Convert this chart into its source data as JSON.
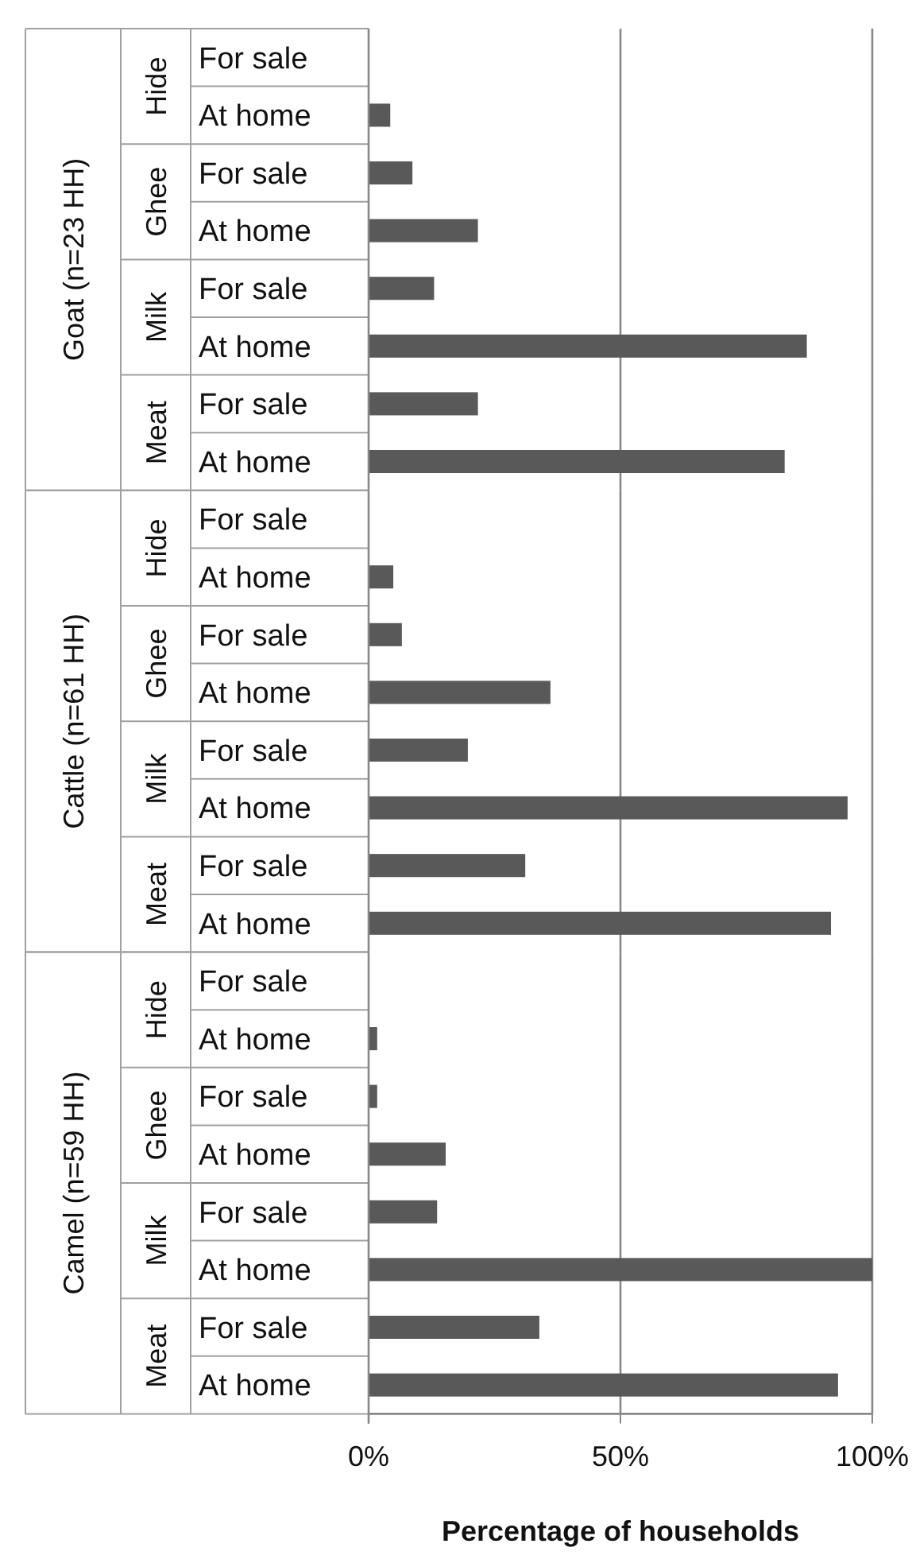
{
  "chart_data": [
    {
      "type": "bar",
      "orientation": "horizontal",
      "title": "Goat (n=23 HH)",
      "categories": [
        "For sale",
        "At home",
        "For sale",
        "At home",
        "For sale",
        "At home",
        "For sale",
        "At home"
      ],
      "annotations": [
        "Hide",
        "Ghee",
        "Milk",
        "Meat"
      ],
      "values": [
        0,
        4.3,
        8.7,
        21.7,
        13,
        87,
        21.7,
        82.6
      ],
      "color": "#595959",
      "xlim": [
        0,
        100
      ],
      "xticks": [
        0,
        50,
        100
      ],
      "grid": "x",
      "tick_labels": "y"
    },
    {
      "type": "bar",
      "orientation": "horizontal",
      "title": "Cattle (n=61  HH)",
      "categories": [
        "For sale",
        "At home",
        "For sale",
        "At home",
        "For sale",
        "At home",
        "For sale",
        "At home"
      ],
      "annotations": [
        "Hide",
        "Ghee",
        "Milk",
        "Meat"
      ],
      "values": [
        0,
        4.9,
        6.6,
        36.1,
        19.7,
        95.1,
        31.1,
        91.8
      ],
      "color": "#595959",
      "xlim": [
        0,
        100
      ],
      "xticks": [
        0,
        50,
        100
      ],
      "grid": "x",
      "tick_labels": "y"
    },
    {
      "type": "bar",
      "orientation": "horizontal",
      "title": "Camel (n=59 HH)",
      "categories": [
        "For sale",
        "At home",
        "For sale",
        "At home",
        "For sale",
        "At home",
        "For sale",
        "At home"
      ],
      "annotations": [
        "Hide",
        "Ghee",
        "Milk",
        "Meat"
      ],
      "values": [
        0,
        1.7,
        1.7,
        15.3,
        13.6,
        100,
        33.9,
        93.2
      ],
      "color": "#595959",
      "xlim": [
        0,
        100
      ],
      "xticks": [
        {
          "value": 0,
          "label": "0%"
        },
        {
          "value": 50,
          "label": "50%"
        },
        {
          "value": 100,
          "label": "100%"
        }
      ],
      "grid": "x",
      "xlabel": "Percentage of households"
    }
  ]
}
